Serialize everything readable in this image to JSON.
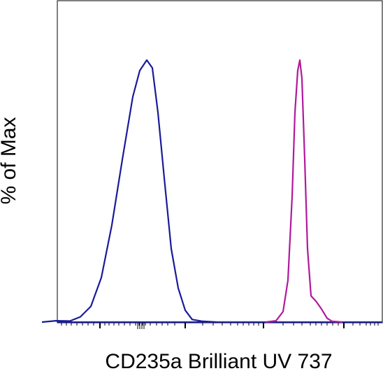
{
  "chart_data": {
    "type": "line",
    "title": "",
    "xlabel": "CD235a Brilliant UV 737",
    "ylabel": "% of Max",
    "x_scale": "log",
    "ylim": [
      0,
      100
    ],
    "grid": false,
    "legend": "none",
    "series": [
      {
        "color": "#1a1a99",
        "x": [
          60,
          80,
          100,
          115,
          130,
          145,
          160,
          175,
          190,
          200,
          210,
          218,
          226,
          235,
          245,
          255,
          265,
          275,
          290,
          310
        ],
        "y": [
          0,
          0.5,
          0.4,
          2,
          6,
          17,
          37,
          62,
          86,
          96,
          100,
          97,
          80,
          55,
          28,
          13,
          4.5,
          1,
          0.3,
          0
        ]
      },
      {
        "color": "#b0199c",
        "x": [
          380,
          395,
          405,
          412,
          418,
          422,
          426,
          429,
          432,
          436,
          440,
          445,
          452,
          460,
          468,
          475,
          490
        ],
        "y": [
          0,
          0.5,
          4,
          16,
          48,
          80,
          96,
          100,
          93,
          62,
          28,
          10,
          8,
          5,
          1.5,
          0.3,
          0
        ]
      }
    ]
  }
}
